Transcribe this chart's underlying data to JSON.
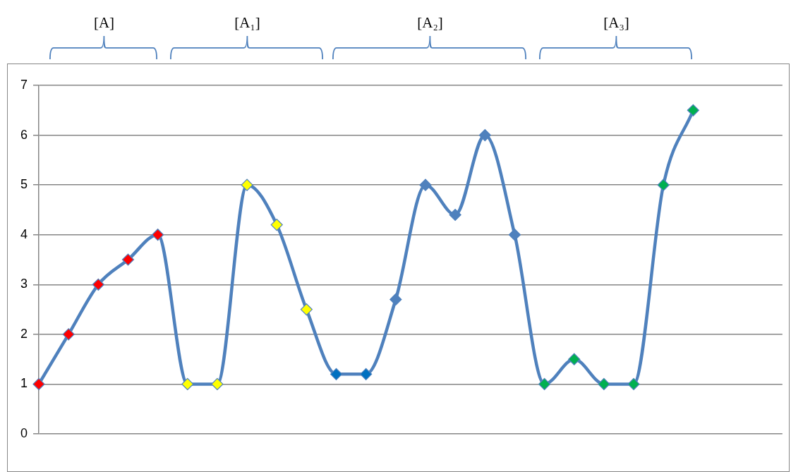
{
  "chart_data": {
    "type": "line",
    "categories": [
      null,
      null,
      null,
      null,
      null,
      null,
      null,
      null,
      null,
      null,
      null,
      null,
      null,
      null,
      null,
      null,
      null,
      null,
      null,
      null,
      null,
      null,
      null,
      null,
      null,
      null
    ],
    "series": [
      {
        "color": "#4f81bd",
        "values": [
          1,
          2,
          3,
          3.5,
          4,
          1,
          1,
          5,
          4.2,
          2.5,
          1.2,
          1.2,
          2.7,
          5,
          4.4,
          6,
          4,
          1,
          1.5,
          1,
          1,
          5,
          6.5,
          null,
          null,
          null
        ],
        "colors": [
          "#ff0000",
          "#ff0000",
          "#ff0000",
          "#ff0000",
          "#ff0000",
          "#ffff00",
          "#ffff00",
          "#ffff00",
          "#ffff00",
          "#ffff00",
          "#0070c0",
          "#0070c0",
          "#4f81bd",
          "#4f81bd",
          "#4f81bd",
          "#4f81bd",
          "#4f81bd",
          "#00b050",
          "#00b050",
          "#00b050",
          "#00b050",
          "#00b050",
          "#00b050",
          null,
          null,
          null
        ]
      }
    ],
    "ylim": [
      0,
      7
    ],
    "yticks": [
      0,
      1,
      2,
      3,
      4,
      5,
      6,
      7
    ],
    "grid": "y",
    "legend": false,
    "marker": "diamond",
    "line_style": "solid",
    "tick_labels": "y",
    "annotations": [
      "[A]",
      "[A₁]",
      "[A₂]",
      "[A₃]"
    ]
  }
}
